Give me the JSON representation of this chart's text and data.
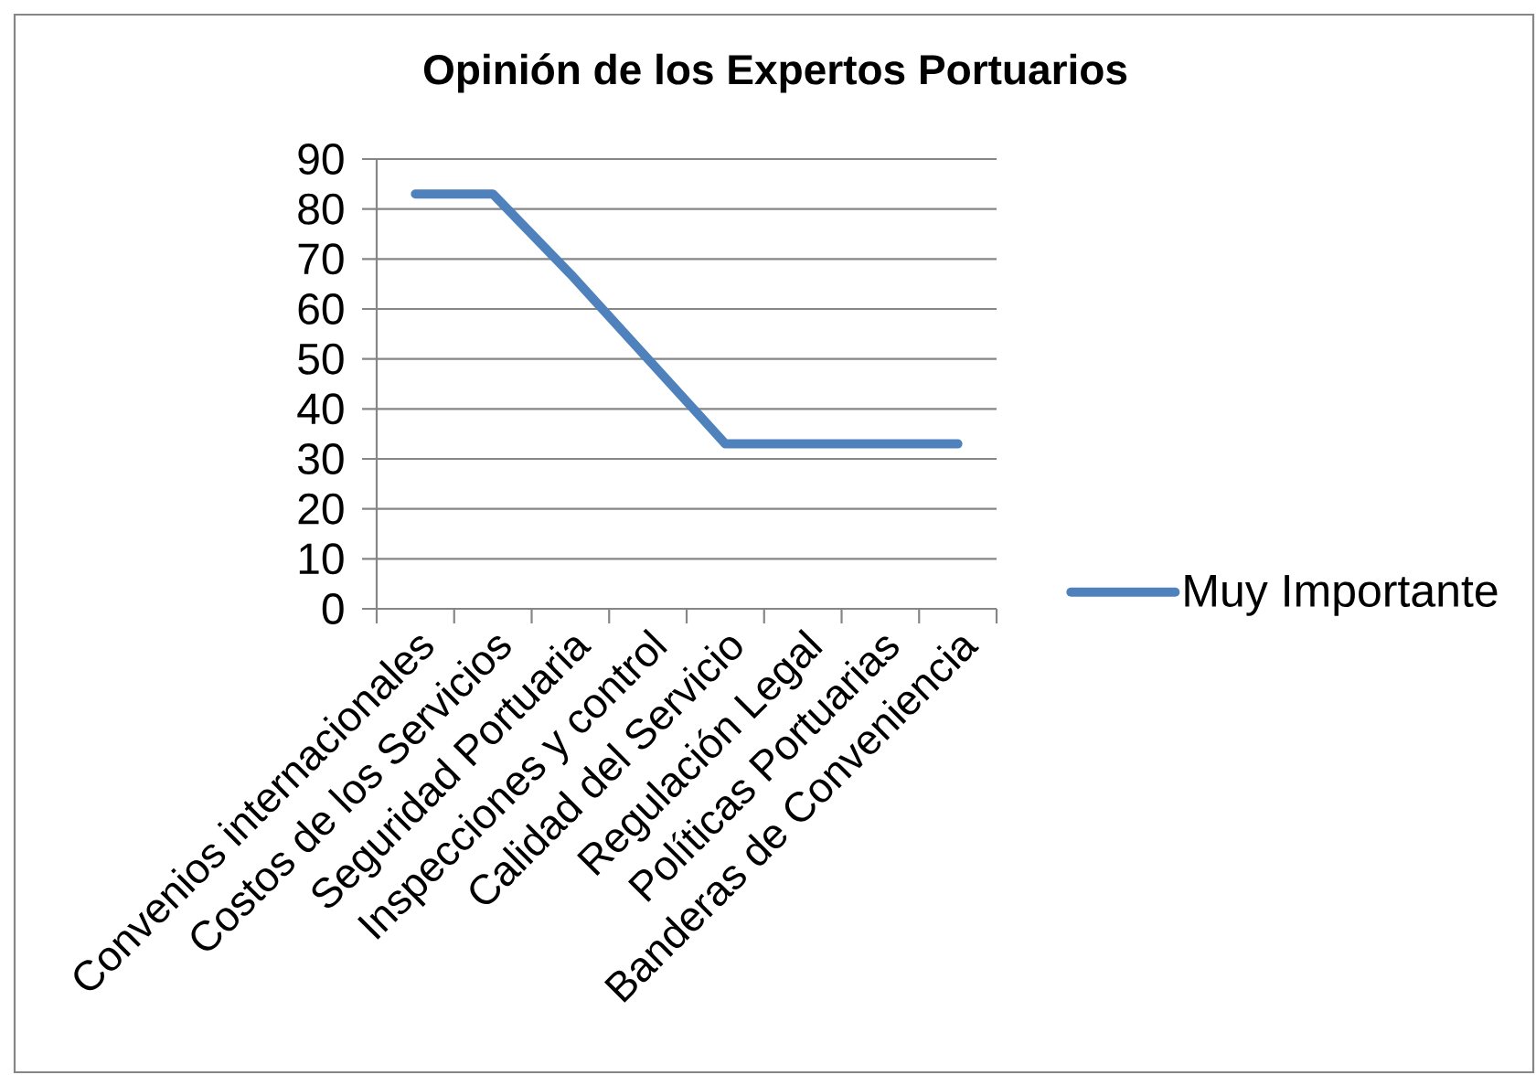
{
  "chart_data": {
    "type": "line",
    "title": "Opinión de los Expertos Portuarios",
    "categories": [
      "Convenios internacionales",
      "Costos de los Servicios",
      "Seguridad Portuaria",
      "Inspecciones y control",
      "Calidad del Servicio",
      "Regulación Legal",
      "Políticas Portuarias",
      "Banderas de Conveniencia"
    ],
    "series": [
      {
        "name": "Muy Importante",
        "color": "#4f81bd",
        "values": [
          83,
          83,
          67,
          50,
          33,
          33,
          33,
          33
        ]
      }
    ],
    "ylim": [
      0,
      90
    ],
    "yticks": [
      0,
      10,
      20,
      30,
      40,
      50,
      60,
      70,
      80,
      90
    ],
    "grid": "y",
    "legend": "right"
  }
}
